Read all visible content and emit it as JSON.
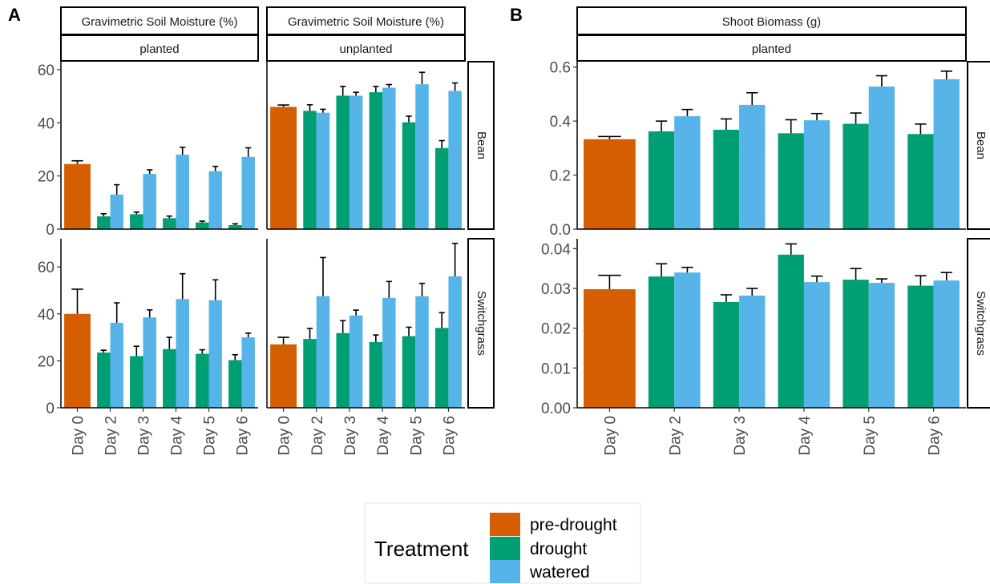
{
  "panel_labels": [
    "A",
    "B"
  ],
  "colors": {
    "pre-drought": "#D55E00",
    "drought": "#009E73",
    "watered": "#56B4E9"
  },
  "legend": {
    "title": "Treatment",
    "items": [
      "pre-drought",
      "drought",
      "watered"
    ]
  },
  "chart_data": [
    {
      "type": "bar",
      "panel": "A",
      "strip_top": "Gravimetric Soil Moisture (%)",
      "strip_sub": "planted",
      "row": "Bean",
      "categories": [
        "Day 0",
        "Day 2",
        "Day 3",
        "Day 4",
        "Day 5",
        "Day 6"
      ],
      "ylim": [
        0,
        63
      ],
      "yticks": [
        0,
        20,
        40,
        60
      ],
      "series": [
        {
          "name": "pre-drought",
          "values": [
            24.5,
            null,
            null,
            null,
            null,
            null
          ],
          "err": [
            1.2,
            null,
            null,
            null,
            null,
            null
          ]
        },
        {
          "name": "drought",
          "values": [
            null,
            4.8,
            5.6,
            4.1,
            2.5,
            1.5
          ],
          "err": [
            null,
            1.0,
            0.8,
            0.8,
            0.5,
            0.5
          ]
        },
        {
          "name": "watered",
          "values": [
            null,
            13.0,
            20.8,
            28.0,
            21.8,
            27.2
          ],
          "err": [
            null,
            3.7,
            1.5,
            2.8,
            1.8,
            3.4
          ]
        }
      ]
    },
    {
      "type": "bar",
      "panel": "A",
      "strip_top": "Gravimetric Soil Moisture (%)",
      "strip_sub": "unplanted",
      "row": "Bean",
      "categories": [
        "Day 0",
        "Day 2",
        "Day 3",
        "Day 4",
        "Day 5",
        "Day 6"
      ],
      "ylim": [
        0,
        63
      ],
      "yticks": [
        0,
        20,
        40,
        60
      ],
      "series": [
        {
          "name": "pre-drought",
          "values": [
            46.0,
            null,
            null,
            null,
            null,
            null
          ],
          "err": [
            0.7,
            null,
            null,
            null,
            null,
            null
          ]
        },
        {
          "name": "drought",
          "values": [
            null,
            44.5,
            50.2,
            51.5,
            40.2,
            30.5
          ],
          "err": [
            null,
            2.3,
            3.5,
            2.2,
            2.3,
            2.8
          ]
        },
        {
          "name": "watered",
          "values": [
            null,
            43.8,
            50.2,
            53.2,
            54.5,
            52.0
          ],
          "err": [
            null,
            1.3,
            1.3,
            1.2,
            4.5,
            3.0
          ]
        }
      ]
    },
    {
      "type": "bar",
      "panel": "A",
      "strip_top": "Gravimetric Soil Moisture (%)",
      "strip_sub": "planted",
      "row": "Switchgrass",
      "categories": [
        "Day 0",
        "Day 2",
        "Day 3",
        "Day 4",
        "Day 5",
        "Day 6"
      ],
      "ylim": [
        0,
        72
      ],
      "yticks": [
        0,
        20,
        40,
        60
      ],
      "series": [
        {
          "name": "pre-drought",
          "values": [
            40.0,
            null,
            null,
            null,
            null,
            null
          ],
          "err": [
            10.5,
            null,
            null,
            null,
            null,
            null
          ]
        },
        {
          "name": "drought",
          "values": [
            null,
            23.5,
            22.0,
            25.0,
            23.0,
            20.3
          ],
          "err": [
            null,
            1.0,
            4.2,
            5.0,
            1.7,
            2.3
          ]
        },
        {
          "name": "watered",
          "values": [
            null,
            36.2,
            38.5,
            46.3,
            45.8,
            30.0
          ],
          "err": [
            null,
            8.5,
            3.2,
            10.8,
            8.7,
            1.8
          ]
        }
      ]
    },
    {
      "type": "bar",
      "panel": "A",
      "strip_top": "Gravimetric Soil Moisture (%)",
      "strip_sub": "unplanted",
      "row": "Switchgrass",
      "categories": [
        "Day 0",
        "Day 2",
        "Day 3",
        "Day 4",
        "Day 5",
        "Day 6"
      ],
      "ylim": [
        0,
        72
      ],
      "yticks": [
        0,
        20,
        40,
        60
      ],
      "series": [
        {
          "name": "pre-drought",
          "values": [
            27.0,
            null,
            null,
            null,
            null,
            null
          ],
          "err": [
            3.0,
            null,
            null,
            null,
            null,
            null
          ]
        },
        {
          "name": "drought",
          "values": [
            null,
            29.3,
            31.8,
            28.0,
            30.5,
            34.0
          ],
          "err": [
            null,
            4.5,
            5.3,
            3.0,
            3.8,
            6.5
          ]
        },
        {
          "name": "watered",
          "values": [
            null,
            47.5,
            39.3,
            46.8,
            47.5,
            56.0
          ],
          "err": [
            null,
            16.5,
            2.3,
            7.0,
            5.5,
            14.0
          ]
        }
      ]
    },
    {
      "type": "bar",
      "panel": "B",
      "strip_top": "Shoot Biomass (g)",
      "strip_sub": "planted",
      "row": "Bean",
      "categories": [
        "Day 0",
        "Day 2",
        "Day 3",
        "Day 4",
        "Day 5",
        "Day 6"
      ],
      "ylim": [
        0,
        0.62
      ],
      "yticks": [
        "0.0",
        "0.2",
        "0.4",
        "0.6"
      ],
      "series": [
        {
          "name": "pre-drought",
          "values": [
            0.333,
            null,
            null,
            null,
            null,
            null
          ],
          "err": [
            0.01,
            null,
            null,
            null,
            null,
            null
          ]
        },
        {
          "name": "drought",
          "values": [
            null,
            0.362,
            0.368,
            0.355,
            0.39,
            0.352
          ],
          "err": [
            null,
            0.038,
            0.04,
            0.05,
            0.04,
            0.037
          ]
        },
        {
          "name": "watered",
          "values": [
            null,
            0.418,
            0.46,
            0.403,
            0.528,
            0.555
          ],
          "err": [
            null,
            0.025,
            0.045,
            0.025,
            0.04,
            0.03
          ]
        }
      ]
    },
    {
      "type": "bar",
      "panel": "B",
      "strip_top": "Shoot Biomass (g)",
      "strip_sub": "planted",
      "row": "Switchgrass",
      "categories": [
        "Day 0",
        "Day 2",
        "Day 3",
        "Day 4",
        "Day 5",
        "Day 6"
      ],
      "ylim": [
        0,
        0.0425
      ],
      "yticks": [
        "0.00",
        "0.01",
        "0.02",
        "0.03",
        "0.04"
      ],
      "series": [
        {
          "name": "pre-drought",
          "values": [
            0.0298,
            null,
            null,
            null,
            null,
            null
          ],
          "err": [
            0.0035,
            null,
            null,
            null,
            null,
            null
          ]
        },
        {
          "name": "drought",
          "values": [
            null,
            0.033,
            0.0266,
            0.0385,
            0.0322,
            0.0307
          ],
          "err": [
            null,
            0.0032,
            0.0018,
            0.0027,
            0.0028,
            0.0025
          ]
        },
        {
          "name": "watered",
          "values": [
            null,
            0.034,
            0.0282,
            0.0316,
            0.0314,
            0.032
          ],
          "err": [
            null,
            0.0013,
            0.0018,
            0.0015,
            0.001,
            0.002
          ]
        }
      ]
    }
  ]
}
